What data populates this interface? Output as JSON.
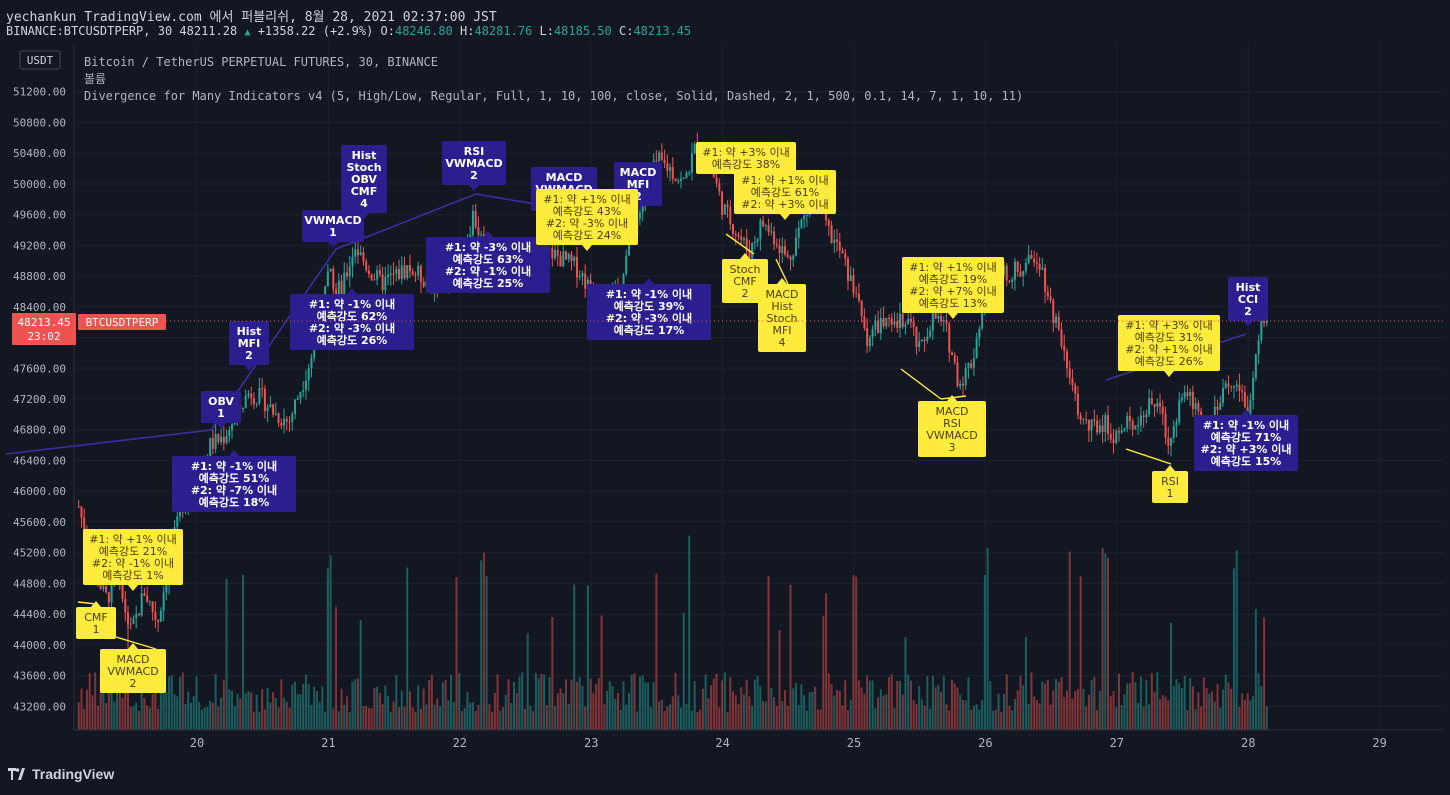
{
  "header": {
    "line1": "yechankun TradingView.com 에서 퍼블리쉬, 8월 28, 2021 02:37:00 JST",
    "symbol": "BINANCE:BTCUSDTPERP, 30",
    "last": "48211.28",
    "change": "+1358.22 (+2.9%)",
    "o_label": "O:",
    "o": "48246.80",
    "h_label": "H:",
    "h": "48281.76",
    "l_label": "L:",
    "l": "48185.50",
    "c_label": "C:",
    "c": "48213.45"
  },
  "legend": {
    "title": "Bitcoin / TetherUS PERPETUAL FUTURES, 30, BINANCE",
    "volume": "볼륨",
    "indicator": "Divergence for Many Indicators v4 (5, High/Low, Regular, Full, 1, 10, 100, close, Solid, Dashed, 2, 1, 500, 0.1, 14, 7, 1, 10, 11)"
  },
  "currency_button": "USDT",
  "price_tag": {
    "price": "48213.45",
    "countdown": "23:02",
    "symbol": "BTCUSDTPERP"
  },
  "brand": "TradingView",
  "colors": {
    "bg": "#131722",
    "up": "#26a69a",
    "down": "#ef5350",
    "label_purple": "#2b1f8f",
    "label_yellow": "#ffeb3b",
    "tag": "#ef5350"
  },
  "chart_data": {
    "type": "candlestick",
    "title": "Bitcoin / TetherUS PERPETUAL FUTURES, 30, BINANCE",
    "ylim": [
      43000,
      51600
    ],
    "y_ticks": [
      "51200.00",
      "50800.00",
      "50400.00",
      "50000.00",
      "49600.00",
      "49200.00",
      "48800.00",
      "48400.00",
      "48000.00",
      "47600.00",
      "47200.00",
      "46800.00",
      "46400.00",
      "46000.00",
      "45600.00",
      "45200.00",
      "44800.00",
      "44400.00",
      "44000.00",
      "43600.00",
      "43200.00"
    ],
    "x_ticks": [
      "20",
      "21",
      "22",
      "23",
      "24",
      "25",
      "26",
      "27",
      "28",
      "29"
    ],
    "last_price": 48213.45,
    "price_path": [
      [
        19.1,
        45800
      ],
      [
        19.2,
        45100
      ],
      [
        19.3,
        44600
      ],
      [
        19.4,
        44800
      ],
      [
        19.5,
        44150
      ],
      [
        19.6,
        44700
      ],
      [
        19.7,
        44300
      ],
      [
        19.8,
        45200
      ],
      [
        19.9,
        45900
      ],
      [
        20.0,
        46100
      ],
      [
        20.1,
        46600
      ],
      [
        20.2,
        46700
      ],
      [
        20.3,
        47000
      ],
      [
        20.4,
        47300
      ],
      [
        20.5,
        47200
      ],
      [
        20.6,
        47000
      ],
      [
        20.7,
        46900
      ],
      [
        20.8,
        47400
      ],
      [
        20.9,
        47900
      ],
      [
        21.0,
        48800
      ],
      [
        21.1,
        48600
      ],
      [
        21.2,
        49200
      ],
      [
        21.3,
        48900
      ],
      [
        21.4,
        48700
      ],
      [
        21.6,
        48900
      ],
      [
        21.8,
        48700
      ],
      [
        22.0,
        48900
      ],
      [
        22.1,
        49600
      ],
      [
        22.2,
        49100
      ],
      [
        22.3,
        48900
      ],
      [
        22.5,
        49000
      ],
      [
        22.7,
        49100
      ],
      [
        22.9,
        48900
      ],
      [
        23.0,
        48600
      ],
      [
        23.1,
        48300
      ],
      [
        23.2,
        48600
      ],
      [
        23.3,
        49300
      ],
      [
        23.4,
        49800
      ],
      [
        23.5,
        50300
      ],
      [
        23.6,
        50200
      ],
      [
        23.7,
        50000
      ],
      [
        23.8,
        50500
      ],
      [
        23.9,
        50300
      ],
      [
        24.0,
        49700
      ],
      [
        24.1,
        49400
      ],
      [
        24.2,
        49100
      ],
      [
        24.3,
        49500
      ],
      [
        24.4,
        49300
      ],
      [
        24.5,
        49000
      ],
      [
        24.6,
        49500
      ],
      [
        24.7,
        49800
      ],
      [
        24.8,
        49400
      ],
      [
        24.9,
        49100
      ],
      [
        25.0,
        48600
      ],
      [
        25.1,
        48000
      ],
      [
        25.2,
        48200
      ],
      [
        25.3,
        48100
      ],
      [
        25.4,
        48300
      ],
      [
        25.5,
        47800
      ],
      [
        25.6,
        48300
      ],
      [
        25.7,
        48100
      ],
      [
        25.8,
        47400
      ],
      [
        25.9,
        47700
      ],
      [
        26.0,
        48600
      ],
      [
        26.1,
        48800
      ],
      [
        26.3,
        48900
      ],
      [
        26.4,
        49100
      ],
      [
        26.5,
        48400
      ],
      [
        26.6,
        47900
      ],
      [
        26.7,
        47000
      ],
      [
        26.8,
        46800
      ],
      [
        26.9,
        46900
      ],
      [
        27.0,
        46700
      ],
      [
        27.1,
        46900
      ],
      [
        27.2,
        47000
      ],
      [
        27.3,
        47200
      ],
      [
        27.4,
        46600
      ],
      [
        27.5,
        47300
      ],
      [
        27.6,
        47100
      ],
      [
        27.7,
        46800
      ],
      [
        27.8,
        47200
      ],
      [
        27.9,
        47500
      ],
      [
        28.0,
        47000
      ],
      [
        28.05,
        47600
      ],
      [
        28.1,
        48250
      ],
      [
        28.15,
        48213
      ]
    ],
    "volume_peaks": [
      [
        21.0,
        "high"
      ],
      [
        21.6,
        "high"
      ],
      [
        22.2,
        "high"
      ],
      [
        25.0,
        "high"
      ],
      [
        26.0,
        "high"
      ],
      [
        26.9,
        "high"
      ],
      [
        27.9,
        "high"
      ]
    ],
    "annotations": [
      {
        "kind": "purple",
        "text": [
          "OBV",
          "1"
        ]
      },
      {
        "kind": "purple",
        "text": [
          "Hist",
          "MFI",
          "2"
        ]
      },
      {
        "kind": "purple",
        "text": [
          "VWMACD",
          "1"
        ]
      },
      {
        "kind": "purple",
        "text": [
          "Hist",
          "Stoch",
          "OBV",
          "CMF",
          "4"
        ]
      },
      {
        "kind": "purple",
        "text": [
          "RSI",
          "VWMACD",
          "2"
        ]
      },
      {
        "kind": "purple",
        "text": [
          "MACD",
          "VWMACD",
          "2"
        ]
      },
      {
        "kind": "purple",
        "text": [
          "MACD",
          "MFI",
          "2"
        ]
      },
      {
        "kind": "purple",
        "text": [
          "Hist",
          "CCI",
          "2"
        ]
      },
      {
        "kind": "purple",
        "text": [
          "#1: 약 -1% 이내",
          "예측강도 51%",
          "#2: 약 -7% 이내",
          "예측강도 18%"
        ]
      },
      {
        "kind": "purple",
        "text": [
          "#1: 약 -1% 이내",
          "예측강도 62%",
          "#2: 약 -3% 이내",
          "예측강도 26%"
        ]
      },
      {
        "kind": "purple",
        "text": [
          "#1: 약 -3% 이내",
          "예측강도 63%",
          "#2: 약 -1% 이내",
          "예측강도 25%"
        ]
      },
      {
        "kind": "purple",
        "text": [
          "#1: 약 -1% 이내",
          "예측강도 39%",
          "#2: 약 -3% 이내",
          "예측강도 17%"
        ]
      },
      {
        "kind": "purple",
        "text": [
          "#1: 약 -1% 이내",
          "예측강도 71%",
          "#2: 약 +3% 이내",
          "예측강도 15%"
        ]
      },
      {
        "kind": "yellow",
        "text": [
          "CMF",
          "1"
        ]
      },
      {
        "kind": "yellow",
        "text": [
          "MACD",
          "VWMACD",
          "2"
        ]
      },
      {
        "kind": "yellow",
        "text": [
          "#1: 약 +1% 이내",
          "예측강도 21%",
          "#2: 약 -1% 이내",
          "예측강도 1%"
        ]
      },
      {
        "kind": "yellow",
        "text": [
          "#1: 약 +1% 이내",
          "예측강도 43%",
          "#2: 약 -3% 이내",
          "예측강도 24%"
        ]
      },
      {
        "kind": "yellow",
        "text": [
          "#1: 약 +3% 이내",
          "예측강도 38%"
        ]
      },
      {
        "kind": "yellow",
        "text": [
          "#1: 약 +1% 이내",
          "예측강도 61%",
          "#2: 약 +3% 이내"
        ]
      },
      {
        "kind": "yellow",
        "text": [
          "Stoch",
          "CMF",
          "2"
        ]
      },
      {
        "kind": "yellow",
        "text": [
          "MACD",
          "Hist",
          "Stoch",
          "MFI",
          "4"
        ]
      },
      {
        "kind": "yellow",
        "text": [
          "#1: 약 +1% 이내",
          "예측강도 19%",
          "#2: 약 +7% 이내",
          "예측강도 13%"
        ]
      },
      {
        "kind": "yellow",
        "text": [
          "MACD",
          "RSI",
          "VWMACD",
          "3"
        ]
      },
      {
        "kind": "yellow",
        "text": [
          "#1: 약 +3% 이내",
          "예측강도 31%",
          "#2: 약 +1% 이내",
          "예측강도 26%"
        ]
      },
      {
        "kind": "yellow",
        "text": [
          "RSI",
          "1"
        ]
      }
    ]
  }
}
